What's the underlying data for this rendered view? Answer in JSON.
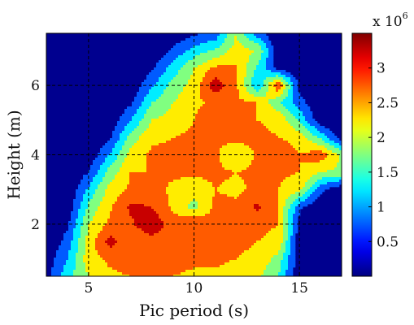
{
  "chart_data": {
    "type": "heatmap",
    "title": "",
    "xlabel": "Pic period (s)",
    "ylabel": "Height (m)",
    "xlim": [
      3,
      17
    ],
    "ylim": [
      0.5,
      7.5
    ],
    "x_ticks": [
      5,
      10,
      15
    ],
    "y_ticks": [
      2,
      4,
      6
    ],
    "x_tick_labels": [
      "5",
      "10",
      "15"
    ],
    "y_tick_labels": [
      "2",
      "4",
      "6"
    ],
    "grid": "dashed at ticks",
    "colorbar": {
      "multiplier": "x 10",
      "exponent": "6",
      "ticks": [
        0.5,
        1,
        1.5,
        2,
        2.5,
        3
      ],
      "tick_labels": [
        "0.5",
        "1",
        "1.5",
        "2",
        "2.5",
        "3"
      ],
      "range": [
        0,
        3.5
      ]
    },
    "colors": {
      "background": "#00008f",
      "plot_border": "#000000"
    },
    "x": [
      3,
      4,
      5,
      6,
      7,
      8,
      9,
      10,
      11,
      12,
      13,
      14,
      15,
      16,
      17
    ],
    "y": [
      0.5,
      1,
      1.5,
      2,
      2.5,
      3,
      3.5,
      4,
      4.5,
      5,
      5.5,
      6,
      6.5,
      7,
      7.5
    ],
    "z": [
      [
        0.3,
        1.3,
        2.0,
        2.4,
        2.5,
        2.5,
        2.5,
        2.4,
        2.4,
        2.3,
        2.1,
        1.5,
        0.1,
        0.0,
        0.0
      ],
      [
        0.2,
        1.0,
        2.3,
        2.6,
        2.8,
        3.0,
        2.7,
        2.6,
        2.6,
        2.5,
        2.4,
        1.8,
        0.1,
        0.0,
        0.0
      ],
      [
        0.0,
        0.7,
        2.2,
        3.2,
        2.6,
        2.8,
        2.7,
        2.7,
        2.6,
        2.6,
        2.5,
        2.4,
        0.1,
        0.0,
        0.0
      ],
      [
        0.0,
        0.4,
        2.0,
        2.6,
        2.9,
        3.4,
        2.7,
        3.0,
        2.7,
        2.6,
        2.6,
        2.5,
        0.3,
        0.0,
        0.0
      ],
      [
        0.0,
        0.1,
        1.6,
        2.4,
        3.1,
        3.0,
        2.4,
        1.8,
        2.6,
        2.6,
        3.1,
        2.5,
        0.6,
        0.0,
        0.0
      ],
      [
        0.0,
        0.0,
        1.1,
        2.2,
        2.6,
        2.7,
        2.4,
        2.2,
        2.5,
        2.4,
        2.6,
        2.5,
        2.2,
        0.7,
        0.0
      ],
      [
        0.0,
        0.0,
        0.5,
        1.7,
        2.5,
        2.5,
        2.6,
        2.6,
        2.6,
        2.5,
        2.6,
        2.6,
        2.5,
        2.0,
        1.9
      ],
      [
        0.0,
        0.0,
        0.1,
        1.0,
        2.2,
        2.6,
        2.6,
        2.6,
        2.6,
        2.0,
        2.6,
        3.0,
        2.5,
        2.8,
        1.9
      ],
      [
        0.0,
        0.0,
        0.0,
        0.4,
        1.7,
        2.4,
        2.5,
        2.6,
        2.6,
        2.7,
        2.6,
        2.5,
        2.3,
        1.4,
        0.2
      ],
      [
        0.0,
        0.0,
        0.0,
        0.1,
        1.0,
        2.0,
        2.2,
        2.5,
        3.0,
        2.6,
        2.5,
        2.4,
        1.4,
        0.1,
        0.0
      ],
      [
        0.0,
        0.0,
        0.0,
        0.0,
        0.4,
        1.5,
        2.0,
        2.4,
        2.6,
        2.6,
        2.5,
        1.6,
        0.7,
        0.0,
        0.0
      ],
      [
        0.0,
        0.0,
        0.0,
        0.0,
        0.1,
        0.9,
        1.7,
        2.2,
        3.3,
        2.6,
        1.0,
        3.0,
        0.3,
        0.0,
        0.0
      ],
      [
        0.0,
        0.0,
        0.0,
        0.0,
        0.0,
        0.4,
        1.2,
        2.0,
        2.6,
        2.6,
        1.4,
        0.3,
        0.0,
        0.0,
        0.0
      ],
      [
        0.0,
        0.0,
        0.0,
        0.0,
        0.0,
        0.1,
        0.6,
        1.2,
        1.6,
        2.2,
        2.0,
        0.1,
        0.0,
        0.0,
        0.0
      ],
      [
        0.0,
        0.0,
        0.0,
        0.0,
        0.0,
        0.0,
        0.1,
        0.4,
        0.6,
        2.0,
        0.7,
        0.0,
        0.0,
        0.0,
        0.0
      ]
    ]
  }
}
